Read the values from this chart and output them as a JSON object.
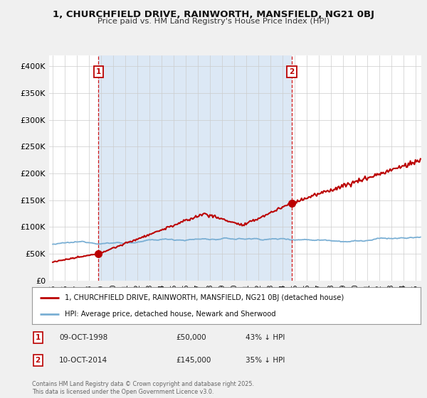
{
  "title_line1": "1, CHURCHFIELD DRIVE, RAINWORTH, MANSFIELD, NG21 0BJ",
  "title_line2": "Price paid vs. HM Land Registry's House Price Index (HPI)",
  "background_color": "#f0f0f0",
  "plot_bg_color": "#ffffff",
  "shaded_color": "#dce8f5",
  "red_color": "#bb0000",
  "blue_color": "#7aafd4",
  "vline_color": "#cc0000",
  "grid_color": "#cccccc",
  "ylim": [
    0,
    420000
  ],
  "yticks": [
    0,
    50000,
    100000,
    150000,
    200000,
    250000,
    300000,
    350000,
    400000
  ],
  "ytick_labels": [
    "£0",
    "£50K",
    "£100K",
    "£150K",
    "£200K",
    "£250K",
    "£300K",
    "£350K",
    "£400K"
  ],
  "xlim_start": 1994.7,
  "xlim_end": 2025.5,
  "xtick_years": [
    1995,
    1996,
    1997,
    1998,
    1999,
    2000,
    2001,
    2002,
    2003,
    2004,
    2005,
    2006,
    2007,
    2008,
    2009,
    2010,
    2011,
    2012,
    2013,
    2014,
    2015,
    2016,
    2017,
    2018,
    2019,
    2020,
    2021,
    2022,
    2023,
    2024,
    2025
  ],
  "marker1_x": 1998.78,
  "marker1_y": 50000,
  "marker1_label": "1",
  "marker2_x": 2014.78,
  "marker2_y": 145000,
  "marker2_label": "2",
  "vline1_x": 1998.78,
  "vline2_x": 2014.78,
  "legend_property_label": "1, CHURCHFIELD DRIVE, RAINWORTH, MANSFIELD, NG21 0BJ (detached house)",
  "legend_hpi_label": "HPI: Average price, detached house, Newark and Sherwood",
  "annot1_date": "09-OCT-1998",
  "annot1_price": "£50,000",
  "annot1_hpi": "43% ↓ HPI",
  "annot2_date": "10-OCT-2014",
  "annot2_price": "£145,000",
  "annot2_hpi": "35% ↓ HPI",
  "footer": "Contains HM Land Registry data © Crown copyright and database right 2025.\nThis data is licensed under the Open Government Licence v3.0."
}
